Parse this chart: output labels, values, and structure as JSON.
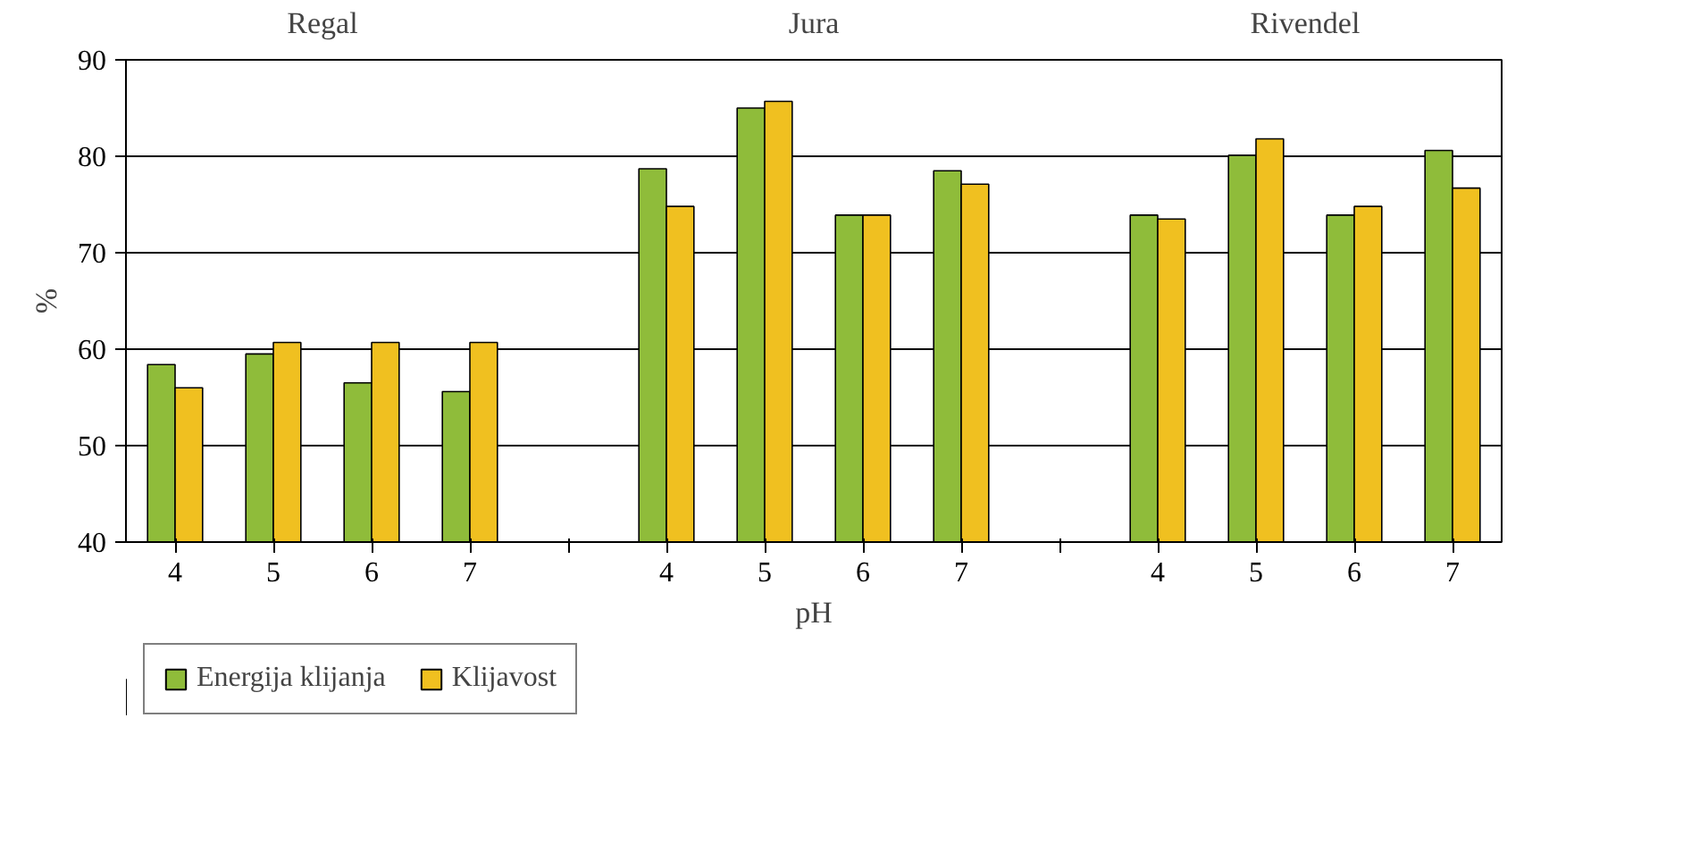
{
  "chart_data": {
    "type": "bar",
    "xlabel": "pH",
    "ylabel": "%",
    "categories": [
      "4",
      "5",
      "6",
      "7",
      null,
      "4",
      "5",
      "6",
      "7",
      null,
      "4",
      "5",
      "6",
      "7"
    ],
    "series": [
      {
        "name": "Energija klijanja",
        "color": "#8fbc3a",
        "values": [
          58.4,
          59.5,
          56.5,
          55.6,
          null,
          78.7,
          85.0,
          73.9,
          78.5,
          null,
          73.9,
          80.1,
          73.9,
          80.6
        ]
      },
      {
        "name": "Klijavost",
        "color": "#f0c020",
        "values": [
          56.0,
          60.7,
          60.7,
          60.7,
          null,
          74.8,
          85.7,
          73.9,
          77.1,
          null,
          73.5,
          81.8,
          74.8,
          76.7
        ]
      }
    ],
    "annotations": [
      "Regal",
      "Jura",
      "Rivendel"
    ],
    "ylim": [
      40,
      90
    ],
    "yticks": [
      40,
      50,
      60,
      70,
      80,
      90
    ],
    "grid": "y",
    "legend": "bottom left"
  }
}
